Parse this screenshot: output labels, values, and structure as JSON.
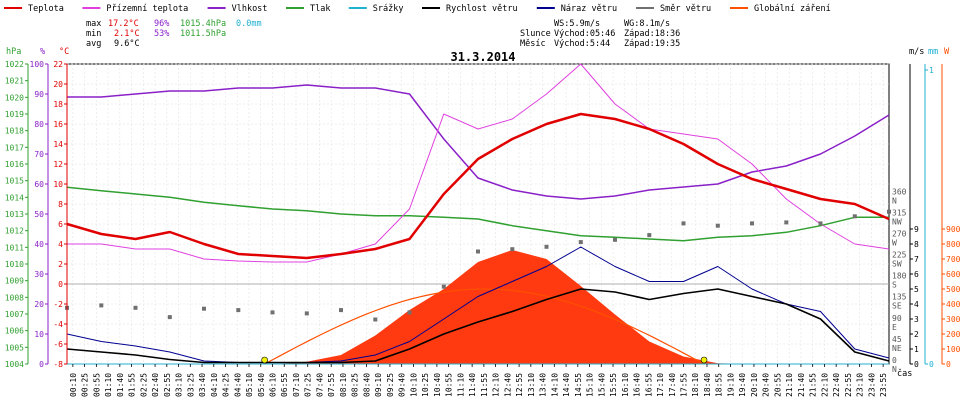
{
  "chart_data": {
    "type": "line",
    "title": "31.3.2014",
    "legend": [
      {
        "label": "Teplota",
        "color": "#e00000"
      },
      {
        "label": "Přízemní teplota",
        "color": "#e040e0"
      },
      {
        "label": "Vlhkost",
        "color": "#8a20c8"
      },
      {
        "label": "Tlak",
        "color": "#30a030"
      },
      {
        "label": "Srážky",
        "color": "#20b0d0"
      },
      {
        "label": "Rychlost větru",
        "color": "#000000"
      },
      {
        "label": "Náraz větru",
        "color": "#000090"
      },
      {
        "label": "Směr větru",
        "color": "#707070"
      },
      {
        "label": "Globální záření",
        "color": "#ff5000"
      }
    ],
    "stats": {
      "rows": [
        {
          "label": "max",
          "temp": "17.2°C",
          "hum": "96%",
          "press": "1015.4hPa",
          "rain": "0.0mm"
        },
        {
          "label": "min",
          "temp": "2.1°C",
          "hum": "53%",
          "press": "1011.5hPa",
          "rain": ""
        },
        {
          "label": "avg",
          "temp": "9.6°C",
          "hum": "",
          "press": "",
          "rain": ""
        }
      ],
      "wind": {
        "ws": "WS:5.9m/s",
        "wg": "WG:8.1m/s"
      },
      "sun": {
        "label": "Slunce",
        "rise": "Východ:05:46",
        "set": "Západ:18:36"
      },
      "moon": {
        "label": "Měsíc",
        "rise": "Východ:5:44",
        "set": "Západ:19:35"
      }
    },
    "axes": {
      "hpa": {
        "label": "hPa",
        "ticks": [
          "1004",
          "1005",
          "1006",
          "1007",
          "1008",
          "1009",
          "1010",
          "1011",
          "1012",
          "1013",
          "1014",
          "1015",
          "1016",
          "1017",
          "1018",
          "1019",
          "1020",
          "1021",
          "1022"
        ]
      },
      "pct": {
        "label": "%",
        "ticks": [
          "0",
          "10",
          "20",
          "30",
          "40",
          "50",
          "60",
          "70",
          "80",
          "90",
          "100"
        ]
      },
      "temp": {
        "label": "°C",
        "ticks": [
          "-8",
          "-6",
          "-4",
          "-2",
          "0",
          "2",
          "4",
          "6",
          "8",
          "10",
          "12",
          "14",
          "16",
          "18",
          "20",
          "22"
        ]
      },
      "ms": {
        "label": "m/s",
        "ticks": [
          "0",
          "1",
          "2",
          "3",
          "4",
          "5",
          "6",
          "7",
          "8",
          "9"
        ]
      },
      "mm": {
        "label": "mm",
        "ticks": [
          "0",
          "1"
        ]
      },
      "wm2": {
        "label": "W",
        "ticks": [
          "0",
          "100",
          "200",
          "300",
          "400",
          "500",
          "600",
          "700",
          "800",
          "900"
        ]
      },
      "dir": {
        "ticks": [
          {
            "deg": "0",
            "c": "N"
          },
          {
            "deg": "45",
            "c": "NE"
          },
          {
            "deg": "90",
            "c": "E"
          },
          {
            "deg": "135",
            "c": "SE"
          },
          {
            "deg": "180",
            "c": "S"
          },
          {
            "deg": "225",
            "c": "SW"
          },
          {
            "deg": "270",
            "c": "W"
          },
          {
            "deg": "315",
            "c": "NW"
          },
          {
            "deg": "360",
            "c": "N"
          }
        ]
      },
      "x_ticks": [
        "00:10",
        "00:25",
        "00:55",
        "01:10",
        "01:40",
        "01:55",
        "02:25",
        "02:40",
        "02:55",
        "03:10",
        "03:25",
        "03:40",
        "04:10",
        "04:25",
        "04:40",
        "05:10",
        "05:40",
        "06:10",
        "06:55",
        "07:10",
        "07:25",
        "07:40",
        "07:55",
        "08:10",
        "08:25",
        "08:40",
        "09:10",
        "09:25",
        "09:40",
        "10:10",
        "10:25",
        "10:40",
        "10:55",
        "11:10",
        "11:40",
        "11:55",
        "12:10",
        "12:40",
        "12:55",
        "13:10",
        "13:40",
        "14:10",
        "14:40",
        "14:55",
        "15:10",
        "15:40",
        "15:55",
        "16:10",
        "16:40",
        "16:55",
        "17:10",
        "17:40",
        "17:55",
        "18:10",
        "18:40",
        "18:55",
        "19:10",
        "19:40",
        "20:10",
        "20:40",
        "20:55",
        "21:10",
        "21:40",
        "21:55",
        "22:10",
        "22:40",
        "22:55",
        "23:10",
        "23:40",
        "23:55"
      ],
      "x_label": "čas"
    },
    "hours": [
      0,
      1,
      2,
      3,
      4,
      5,
      6,
      7,
      8,
      9,
      10,
      11,
      12,
      13,
      14,
      15,
      16,
      17,
      18,
      19,
      20,
      21,
      22,
      23,
      24
    ],
    "series": [
      {
        "name": "Teplota",
        "unit": "°C",
        "values": [
          6.0,
          5.0,
          4.5,
          5.2,
          4.0,
          3.0,
          2.8,
          2.6,
          3.0,
          3.5,
          4.5,
          9.0,
          12.5,
          14.5,
          16.0,
          17.0,
          16.5,
          15.5,
          14.0,
          12.0,
          10.5,
          9.5,
          8.5,
          8.0,
          6.5
        ]
      },
      {
        "name": "Přízemní teplota",
        "unit": "°C",
        "values": [
          4.0,
          4.0,
          3.5,
          3.5,
          2.5,
          2.3,
          2.2,
          2.2,
          3.0,
          4.0,
          7.5,
          17.0,
          15.5,
          16.5,
          19.0,
          22.0,
          18.0,
          15.5,
          15.0,
          14.5,
          12.0,
          8.5,
          6.0,
          4.0,
          3.5
        ]
      },
      {
        "name": "Vlhkost",
        "unit": "%",
        "values": [
          89,
          89,
          90,
          91,
          91,
          92,
          92,
          93,
          92,
          92,
          90,
          75,
          62,
          58,
          56,
          55,
          56,
          58,
          59,
          60,
          64,
          66,
          70,
          76,
          83
        ]
      },
      {
        "name": "Tlak",
        "unit": "hPa",
        "values": [
          1014.6,
          1014.4,
          1014.2,
          1014.0,
          1013.7,
          1013.5,
          1013.3,
          1013.2,
          1013.0,
          1012.9,
          1012.9,
          1012.8,
          1012.7,
          1012.3,
          1012.0,
          1011.7,
          1011.6,
          1011.5,
          1011.4,
          1011.6,
          1011.7,
          1011.9,
          1012.3,
          1012.8,
          1012.8
        ]
      },
      {
        "name": "Rychlost větru",
        "unit": "m/s",
        "values": [
          1.0,
          0.8,
          0.6,
          0.3,
          0.1,
          0.1,
          0.1,
          0.1,
          0.1,
          0.2,
          1.0,
          2.0,
          2.8,
          3.5,
          4.3,
          5.0,
          4.8,
          4.3,
          4.7,
          5.0,
          4.5,
          4.0,
          3.0,
          0.8,
          0.2
        ]
      },
      {
        "name": "Náraz větru",
        "unit": "m/s",
        "values": [
          2.0,
          1.5,
          1.2,
          0.8,
          0.2,
          0.1,
          0.1,
          0.1,
          0.2,
          0.6,
          1.5,
          3.0,
          4.5,
          5.5,
          6.5,
          7.8,
          6.5,
          5.5,
          5.5,
          6.5,
          5.0,
          4.0,
          3.5,
          1.0,
          0.4
        ]
      },
      {
        "name": "Směr větru",
        "unit": "°",
        "values": [
          120,
          125,
          120,
          100,
          118,
          115,
          110,
          108,
          115,
          95,
          110,
          165,
          240,
          245,
          250,
          260,
          265,
          275,
          300,
          295,
          300,
          302,
          300,
          315,
          325
        ]
      },
      {
        "name": "Globální záření",
        "unit": "W/m²",
        "values": [
          0,
          0,
          0,
          0,
          0,
          0,
          0,
          15,
          60,
          190,
          360,
          500,
          680,
          760,
          700,
          520,
          330,
          150,
          50,
          5,
          0,
          0,
          0,
          0,
          0
        ]
      },
      {
        "name": "Srážky",
        "unit": "mm",
        "values": [
          0,
          0,
          0,
          0,
          0,
          0,
          0,
          0,
          0,
          0,
          0,
          0,
          0,
          0,
          0,
          0,
          0,
          0,
          0,
          0,
          0,
          0,
          0,
          0,
          0
        ]
      }
    ],
    "theoretical_radiation": {
      "sunrise_h": 5.77,
      "sunset_h": 18.6,
      "peak": 500
    }
  }
}
